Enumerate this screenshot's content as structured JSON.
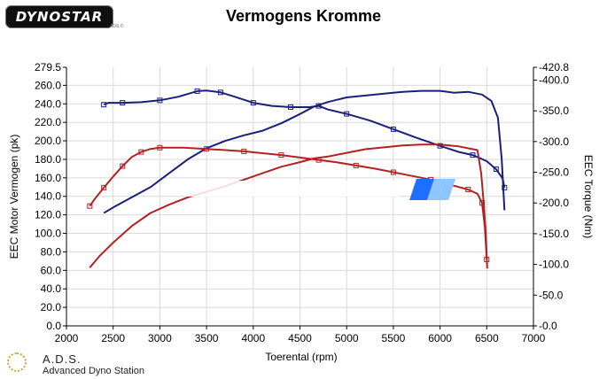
{
  "header": {
    "logo_text": "DYNOSTAR",
    "logo_sub": "ADS ©",
    "title": "Vermogens Kromme"
  },
  "footer": {
    "ads_title": "A.D.S.",
    "ads_subtitle": "Advanced Dyno Station"
  },
  "colors": {
    "blue": "#1a1f7a",
    "red": "#b22222",
    "grid": "#d9d9d9",
    "watermark_blue": "#1f6fff",
    "watermark_light": "#8ec5ff"
  },
  "chart_data": {
    "type": "line",
    "title": "Vermogens Kromme",
    "xlabel": "Toerental (rpm)",
    "ylabel_left": "EEC Motor Vermogen (pk)",
    "ylabel_right": "EEC Torque (Nm)",
    "xlim": [
      2000,
      7000
    ],
    "ylim_left": [
      0,
      279.5
    ],
    "ylim_right": [
      0,
      420.8
    ],
    "x_ticks": [
      "2000",
      "2500",
      "3000",
      "3500",
      "4000",
      "4500",
      "5000",
      "5500",
      "6000",
      "6500",
      "7000"
    ],
    "y_left_ticks": [
      "0.0",
      "20.0",
      "40.0",
      "60.0",
      "80.0",
      "100.0",
      "120.0",
      "140.0",
      "160.0",
      "180.0",
      "200.0",
      "220.0",
      "240.0",
      "260.0",
      "279.5"
    ],
    "y_right_ticks": [
      "0.0",
      "50.0",
      "100.0",
      "150.0",
      "200.0",
      "250.0",
      "300.0",
      "350.0",
      "400.0",
      "420.8"
    ],
    "grid": true,
    "series": [
      {
        "axis": "left",
        "kind": "power",
        "color": "#1a1f7a",
        "markers": false,
        "x": [
          2400,
          2500,
          2700,
          2900,
          3100,
          3300,
          3500,
          3700,
          3900,
          4100,
          4300,
          4500,
          4650,
          4800,
          5000,
          5200,
          5400,
          5600,
          5800,
          6000,
          6150,
          6300,
          6450,
          6550,
          6620,
          6660,
          6690
        ],
        "y": [
          122,
          128,
          139,
          150,
          165,
          180,
          192,
          200,
          206,
          211,
          219,
          229,
          237,
          242,
          247,
          249,
          251,
          253,
          254,
          254,
          252,
          253,
          250,
          243,
          225,
          180,
          125
        ]
      },
      {
        "axis": "right",
        "kind": "torque",
        "color": "#1a1f7a",
        "markers": true,
        "x": [
          2400,
          2450,
          2600,
          2800,
          3000,
          3200,
          3400,
          3500,
          3650,
          3800,
          4000,
          4200,
          4400,
          4600,
          4700,
          4800,
          5000,
          5250,
          5500,
          5750,
          6000,
          6200,
          6350,
          6500,
          6600,
          6670,
          6690
        ],
        "y": [
          360,
          363,
          363,
          364,
          367,
          373,
          382,
          383,
          380,
          373,
          363,
          358,
          356,
          356,
          358,
          352,
          345,
          334,
          320,
          306,
          293,
          283,
          278,
          268,
          255,
          240,
          225
        ]
      },
      {
        "axis": "left",
        "kind": "power",
        "color": "#b22222",
        "markers": false,
        "x": [
          2250,
          2350,
          2500,
          2700,
          2900,
          3100,
          3300,
          3500,
          3700,
          3900,
          4100,
          4300,
          4500,
          4650,
          4800,
          5000,
          5200,
          5400,
          5600,
          5800,
          6000,
          6200,
          6400,
          6440,
          6470,
          6490,
          6505
        ],
        "y": [
          63,
          75,
          90,
          108,
          122,
          131,
          139,
          145,
          151,
          158,
          165,
          172,
          177,
          181,
          183,
          187,
          191,
          193,
          195,
          196,
          196,
          194,
          190,
          165,
          130,
          100,
          62
        ]
      },
      {
        "axis": "right",
        "kind": "torque",
        "color": "#b22222",
        "markers": true,
        "x": [
          2250,
          2300,
          2400,
          2500,
          2600,
          2700,
          2800,
          2900,
          3000,
          3250,
          3500,
          3700,
          3900,
          4100,
          4300,
          4500,
          4700,
          4900,
          5100,
          5300,
          5500,
          5700,
          5900,
          6100,
          6300,
          6400,
          6450,
          6480,
          6500
        ],
        "y": [
          195,
          206,
          225,
          243,
          260,
          275,
          283,
          288,
          290,
          290,
          288,
          286,
          284,
          281,
          278,
          274,
          270,
          266,
          261,
          256,
          250,
          244,
          238,
          230,
          222,
          215,
          200,
          160,
          108
        ]
      }
    ]
  }
}
